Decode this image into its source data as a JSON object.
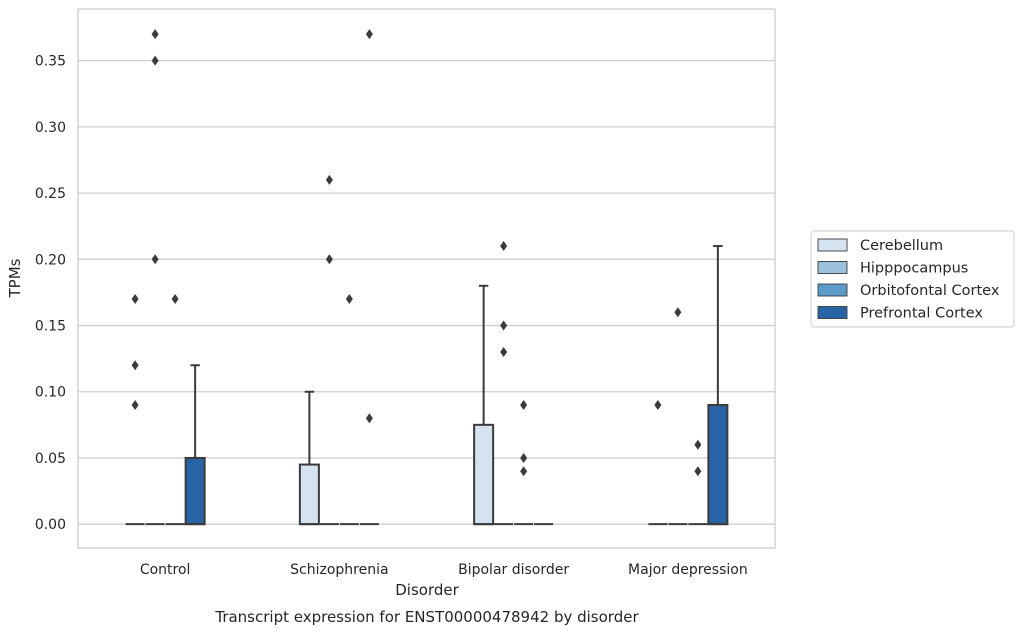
{
  "chart_data": {
    "type": "box",
    "caption": "Transcript expression for ENST00000478942 by disorder",
    "xlabel": "Disorder",
    "ylabel": "TPMs",
    "ylim": [
      -0.018,
      0.389
    ],
    "yticks": [
      0.0,
      0.05,
      0.1,
      0.15,
      0.2,
      0.25,
      0.3,
      0.35
    ],
    "ytick_labels": [
      "0.00",
      "0.05",
      "0.10",
      "0.15",
      "0.20",
      "0.25",
      "0.30",
      "0.35"
    ],
    "grid": "horizontal",
    "legend_position": "right, outside plot",
    "categories": [
      "Control",
      "Schizophrenia",
      "Bipolar disorder",
      "Major depression"
    ],
    "series": [
      {
        "name": "Cerebellum",
        "color": "#d5e3f1",
        "boxes": [
          {
            "q1": 0,
            "median": 0,
            "q3": 0,
            "whisker_low": 0,
            "whisker_high": 0,
            "outliers": [
              0.09,
              0.12,
              0.17
            ]
          },
          {
            "q1": 0,
            "median": 0,
            "q3": 0.045,
            "whisker_low": 0,
            "whisker_high": 0.1,
            "outliers": []
          },
          {
            "q1": 0,
            "median": 0,
            "q3": 0.075,
            "whisker_low": 0,
            "whisker_high": 0.18,
            "outliers": []
          },
          {
            "q1": 0,
            "median": 0,
            "q3": 0,
            "whisker_low": 0,
            "whisker_high": 0,
            "outliers": [
              0.09
            ]
          }
        ]
      },
      {
        "name": "Hipppocampus",
        "color": "#9dc2dd",
        "boxes": [
          {
            "q1": 0,
            "median": 0,
            "q3": 0,
            "whisker_low": 0,
            "whisker_high": 0,
            "outliers": [
              0.2,
              0.35,
              0.37
            ]
          },
          {
            "q1": 0,
            "median": 0,
            "q3": 0,
            "whisker_low": 0,
            "whisker_high": 0,
            "outliers": [
              0.2,
              0.26
            ]
          },
          {
            "q1": 0,
            "median": 0,
            "q3": 0,
            "whisker_low": 0,
            "whisker_high": 0,
            "outliers": [
              0.13,
              0.15,
              0.21
            ]
          },
          {
            "q1": 0,
            "median": 0,
            "q3": 0,
            "whisker_low": 0,
            "whisker_high": 0,
            "outliers": [
              0.16
            ]
          }
        ]
      },
      {
        "name": "Orbitofontal Cortex",
        "color": "#5b9cca",
        "boxes": [
          {
            "q1": 0,
            "median": 0,
            "q3": 0,
            "whisker_low": 0,
            "whisker_high": 0,
            "outliers": [
              0.17
            ]
          },
          {
            "q1": 0,
            "median": 0,
            "q3": 0,
            "whisker_low": 0,
            "whisker_high": 0,
            "outliers": [
              0.17
            ]
          },
          {
            "q1": 0,
            "median": 0,
            "q3": 0,
            "whisker_low": 0,
            "whisker_high": 0,
            "outliers": [
              0.04,
              0.05,
              0.09
            ]
          },
          {
            "q1": 0,
            "median": 0,
            "q3": 0,
            "whisker_low": 0,
            "whisker_high": 0,
            "outliers": [
              0.04,
              0.06
            ]
          }
        ]
      },
      {
        "name": "Prefrontal Cortex",
        "color": "#2864a5",
        "boxes": [
          {
            "q1": 0,
            "median": 0,
            "q3": 0.05,
            "whisker_low": 0,
            "whisker_high": 0.12,
            "outliers": []
          },
          {
            "q1": 0,
            "median": 0,
            "q3": 0,
            "whisker_low": 0,
            "whisker_high": 0,
            "outliers": [
              0.08,
              0.37
            ]
          },
          {
            "q1": 0,
            "median": 0,
            "q3": 0,
            "whisker_low": 0,
            "whisker_high": 0,
            "outliers": []
          },
          {
            "q1": 0,
            "median": 0,
            "q3": 0.09,
            "whisker_low": 0,
            "whisker_high": 0.21,
            "outliers": []
          }
        ]
      }
    ]
  }
}
